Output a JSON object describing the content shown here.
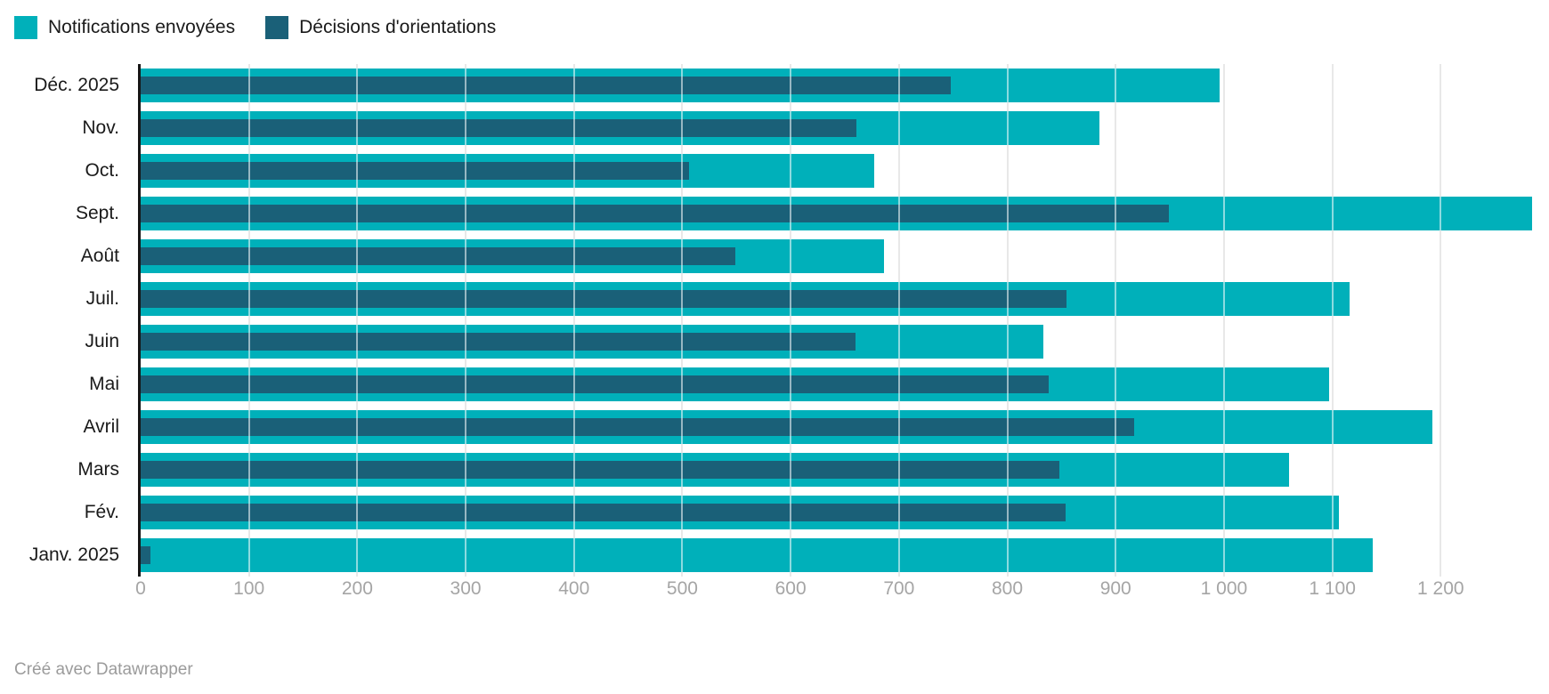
{
  "legend": {
    "items": [
      {
        "label": "Notifications envoyées",
        "color": "#00b0ba"
      },
      {
        "label": "Décisions d'orientations",
        "color": "#1a6078"
      }
    ]
  },
  "footer": {
    "text": "Créé avec Datawrapper"
  },
  "colors": {
    "notifications": "#00b0ba",
    "decisions": "#1a6078",
    "grid": "#e8e8e8",
    "grid_over_bar": "rgba(255,255,255,0.55)",
    "axis_line": "#161616",
    "tick_label": "#a5a5a5",
    "category_label": "#1a1a1a"
  },
  "chart_data": {
    "type": "bar",
    "orientation": "horizontal",
    "title": "",
    "xlabel": "",
    "ylabel": "",
    "grid": "vertical",
    "legend_position": "top-left",
    "categories": [
      "Déc. 2025",
      "Nov.",
      "Oct.",
      "Sept.",
      "Août",
      "Juil.",
      "Juin",
      "Mai",
      "Avril",
      "Mars",
      "Fév.",
      "Janv. 2025"
    ],
    "series": [
      {
        "name": "Notifications envoyées",
        "color": "#00b0ba",
        "values": [
          996,
          885,
          677,
          1284,
          686,
          1116,
          833,
          1097,
          1192,
          1060,
          1106,
          1137
        ]
      },
      {
        "name": "Décisions d'orientations",
        "color": "#1a6078",
        "values": [
          748,
          661,
          506,
          949,
          549,
          855,
          660,
          838,
          917,
          848,
          854,
          9
        ]
      }
    ],
    "xlim": [
      0,
      1300
    ],
    "xticks": [
      0,
      100,
      200,
      300,
      400,
      500,
      600,
      700,
      800,
      900,
      1000,
      1100,
      1200
    ]
  }
}
